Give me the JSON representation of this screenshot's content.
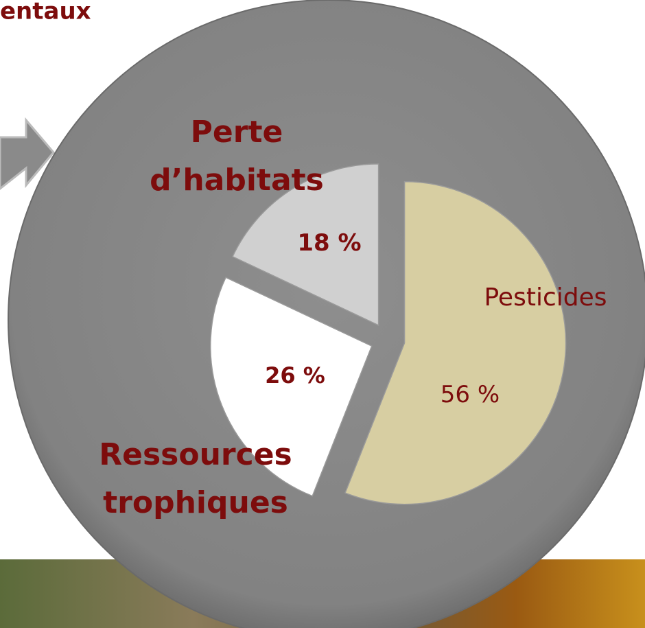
{
  "title": "entaux",
  "chart_data": {
    "type": "pie",
    "categories": [
      "Pesticides",
      "Ressources trophiques",
      "Perte d’habitats"
    ],
    "values": [
      56,
      26,
      18
    ],
    "value_labels": [
      "56 %",
      "26 %",
      "18 %"
    ],
    "colors": [
      "#d7cea2",
      "#ffffff",
      "#d0d0d0"
    ]
  }
}
